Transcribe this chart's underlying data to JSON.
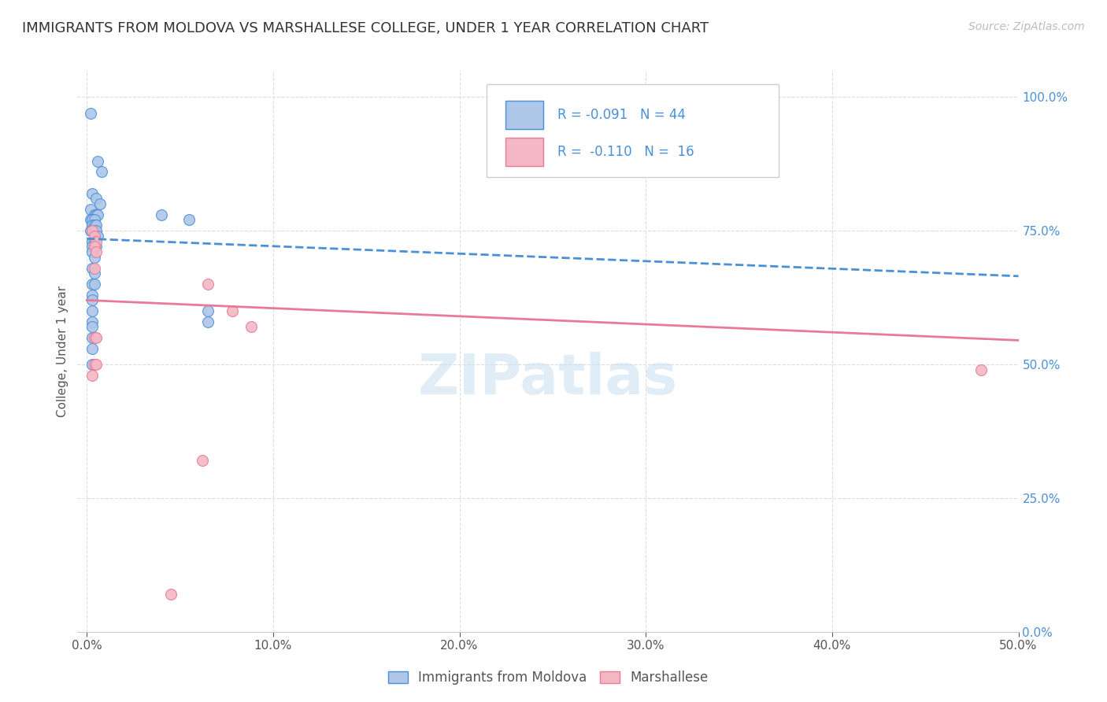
{
  "title": "IMMIGRANTS FROM MOLDOVA VS MARSHALLESE COLLEGE, UNDER 1 YEAR CORRELATION CHART",
  "source": "Source: ZipAtlas.com",
  "ylabel": "College, Under 1 year",
  "xticklabels": [
    "0.0%",
    "10.0%",
    "20.0%",
    "30.0%",
    "40.0%",
    "50.0%"
  ],
  "xtick_values": [
    0.0,
    0.1,
    0.2,
    0.3,
    0.4,
    0.5
  ],
  "yticklabels_right": [
    "100.0%",
    "75.0%",
    "50.0%",
    "25.0%",
    "0.0%"
  ],
  "ytick_values": [
    1.0,
    0.75,
    0.5,
    0.25,
    0.0
  ],
  "xlim": [
    -0.005,
    0.5
  ],
  "ylim": [
    0.0,
    1.05
  ],
  "legend_label1": "Immigrants from Moldova",
  "legend_label2": "Marshallese",
  "color_blue": "#aec6e8",
  "color_pink": "#f4b8c5",
  "trendline_blue": "#4a90d9",
  "trendline_pink": "#e87a96",
  "watermark": "ZIPatlas",
  "blue_scatter": [
    [
      0.002,
      0.97
    ],
    [
      0.006,
      0.88
    ],
    [
      0.008,
      0.86
    ],
    [
      0.003,
      0.82
    ],
    [
      0.005,
      0.81
    ],
    [
      0.007,
      0.8
    ],
    [
      0.002,
      0.79
    ],
    [
      0.004,
      0.78
    ],
    [
      0.005,
      0.78
    ],
    [
      0.006,
      0.78
    ],
    [
      0.002,
      0.77
    ],
    [
      0.003,
      0.77
    ],
    [
      0.004,
      0.77
    ],
    [
      0.003,
      0.76
    ],
    [
      0.004,
      0.76
    ],
    [
      0.005,
      0.76
    ],
    [
      0.002,
      0.75
    ],
    [
      0.003,
      0.75
    ],
    [
      0.004,
      0.75
    ],
    [
      0.005,
      0.75
    ],
    [
      0.006,
      0.74
    ],
    [
      0.003,
      0.73
    ],
    [
      0.004,
      0.73
    ],
    [
      0.003,
      0.72
    ],
    [
      0.004,
      0.72
    ],
    [
      0.005,
      0.72
    ],
    [
      0.003,
      0.71
    ],
    [
      0.004,
      0.7
    ],
    [
      0.003,
      0.68
    ],
    [
      0.004,
      0.67
    ],
    [
      0.003,
      0.65
    ],
    [
      0.004,
      0.65
    ],
    [
      0.003,
      0.63
    ],
    [
      0.003,
      0.62
    ],
    [
      0.003,
      0.6
    ],
    [
      0.003,
      0.58
    ],
    [
      0.003,
      0.57
    ],
    [
      0.003,
      0.55
    ],
    [
      0.003,
      0.53
    ],
    [
      0.003,
      0.5
    ],
    [
      0.04,
      0.78
    ],
    [
      0.055,
      0.77
    ],
    [
      0.065,
      0.6
    ],
    [
      0.065,
      0.58
    ]
  ],
  "pink_scatter": [
    [
      0.003,
      0.75
    ],
    [
      0.004,
      0.74
    ],
    [
      0.005,
      0.73
    ],
    [
      0.004,
      0.72
    ],
    [
      0.005,
      0.71
    ],
    [
      0.004,
      0.68
    ],
    [
      0.004,
      0.55
    ],
    [
      0.005,
      0.55
    ],
    [
      0.004,
      0.5
    ],
    [
      0.005,
      0.5
    ],
    [
      0.003,
      0.48
    ],
    [
      0.065,
      0.65
    ],
    [
      0.078,
      0.6
    ],
    [
      0.088,
      0.57
    ],
    [
      0.48,
      0.49
    ],
    [
      0.062,
      0.32
    ],
    [
      0.045,
      0.07
    ]
  ],
  "blue_trend_x": [
    0.0,
    0.5
  ],
  "blue_trend_y": [
    0.735,
    0.665
  ],
  "pink_trend_x": [
    0.0,
    0.5
  ],
  "pink_trend_y": [
    0.62,
    0.545
  ],
  "grid_color": "#dddddd",
  "background_color": "#ffffff",
  "title_fontsize": 13,
  "axis_fontsize": 11,
  "tick_fontsize": 11,
  "source_fontsize": 10
}
